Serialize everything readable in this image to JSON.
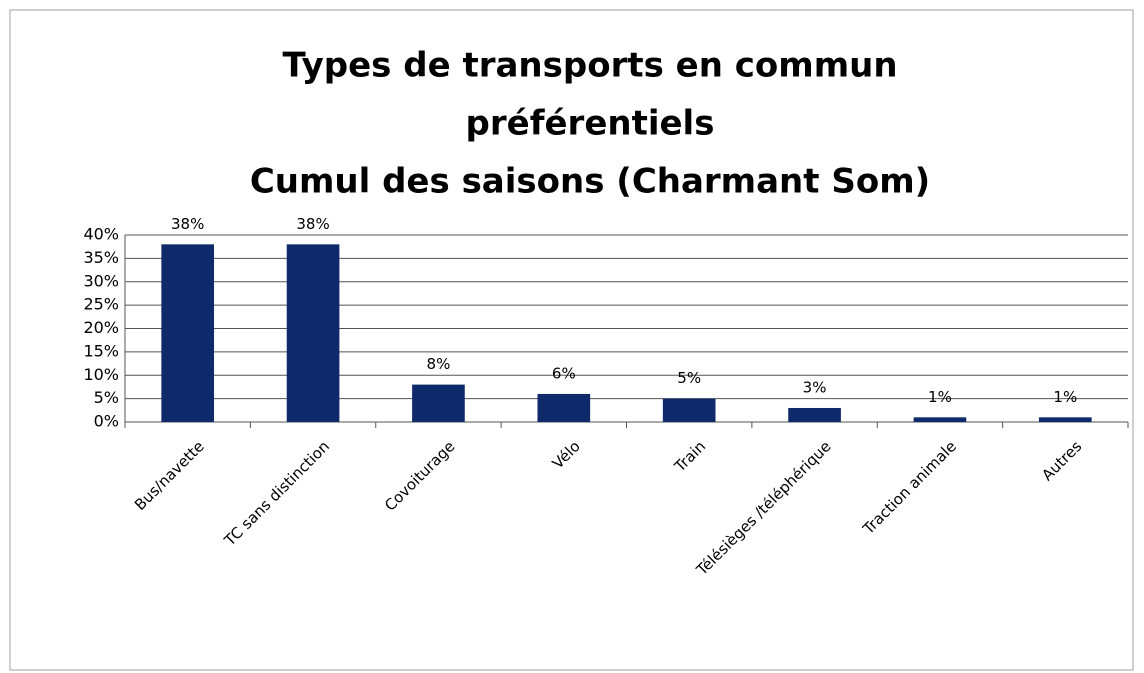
{
  "chart_data": {
    "type": "bar",
    "title": [
      "Types de transports en commun",
      "préférentiels",
      "Cumul des saisons (Charmant Som)"
    ],
    "categories": [
      "Bus/navette",
      "TC sans distinction",
      "Covoiturage",
      "Vélo",
      "Train",
      "Télésièges /téléphérique",
      "Traction animale",
      "Autres"
    ],
    "values": [
      38,
      38,
      8,
      6,
      5,
      3,
      1,
      1
    ],
    "value_labels": [
      "38%",
      "38%",
      "8%",
      "6%",
      "5%",
      "3%",
      "1%",
      "1%"
    ],
    "color": "#0e2a6b",
    "ylim": [
      0,
      40
    ],
    "yticks": [
      {
        "value": 0,
        "label": "0%"
      },
      {
        "value": 5,
        "label": "5%"
      },
      {
        "value": 10,
        "label": "10%"
      },
      {
        "value": 15,
        "label": "15%"
      },
      {
        "value": 20,
        "label": "20%"
      },
      {
        "value": 25,
        "label": "25%"
      },
      {
        "value": 30,
        "label": "30%"
      },
      {
        "value": 35,
        "label": "35%"
      },
      {
        "value": 40,
        "label": "40%"
      }
    ],
    "grid": true
  }
}
